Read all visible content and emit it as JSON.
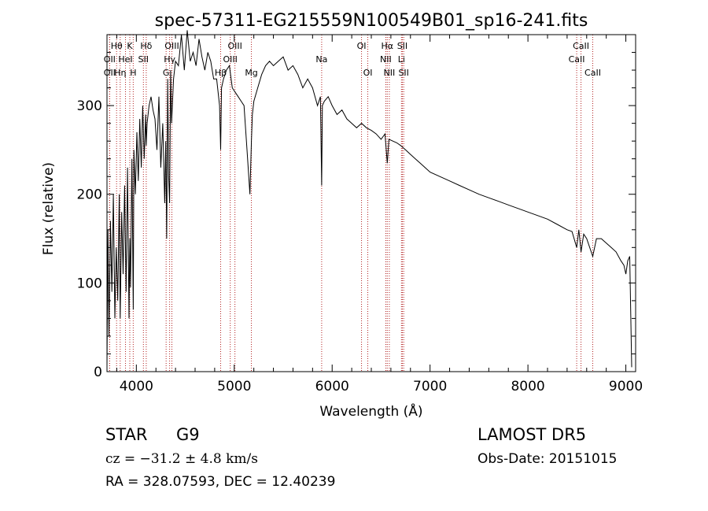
{
  "title": "spec-57311-EG215559N100549B01_sp16-241.fits",
  "info": {
    "object_class": "STAR",
    "subclass": "G9",
    "survey": "LAMOST DR5",
    "cz": "cz = −31.2 ± 4.8 km/s",
    "obs_date": "Obs-Date: 20151015",
    "coords": "RA = 328.07593, DEC =  12.40239"
  },
  "chart_data": {
    "type": "line",
    "title": "spec-57311-EG215559N100549B01_sp16-241.fits",
    "xlabel": "Wavelength (Å)",
    "ylabel": "Flux (relative)",
    "xlim": [
      3700,
      9100
    ],
    "ylim": [
      0,
      380
    ],
    "x_ticks": [
      4000,
      5000,
      6000,
      7000,
      8000,
      9000
    ],
    "y_ticks": [
      0,
      100,
      200,
      300
    ],
    "x_minor_step": 200,
    "y_minor_step": 20,
    "line_color": "#000000",
    "line_marker_color": "#b22222",
    "series": [
      {
        "x": [
          3700,
          3710,
          3720,
          3735,
          3750,
          3765,
          3780,
          3795,
          3810,
          3825,
          3835,
          3850,
          3865,
          3880,
          3895,
          3910,
          3925,
          3933,
          3940,
          3955,
          3968,
          3975,
          3990,
          4005,
          4020,
          4035,
          4050,
          4065,
          4080,
          4095,
          4101,
          4110,
          4130,
          4150,
          4170,
          4190,
          4210,
          4230,
          4250,
          4270,
          4290,
          4300,
          4310,
          4320,
          4330,
          4340,
          4350,
          4360,
          4380,
          4400,
          4430,
          4460,
          4490,
          4520,
          4550,
          4580,
          4610,
          4640,
          4670,
          4700,
          4730,
          4760,
          4790,
          4820,
          4850,
          4861,
          4870,
          4890,
          4920,
          4950,
          4980,
          5010,
          5040,
          5070,
          5100,
          5130,
          5160,
          5175,
          5185,
          5200,
          5240,
          5280,
          5320,
          5360,
          5400,
          5450,
          5500,
          5550,
          5600,
          5650,
          5700,
          5750,
          5800,
          5850,
          5880,
          5893,
          5900,
          5920,
          5960,
          6000,
          6050,
          6100,
          6150,
          6200,
          6250,
          6300,
          6350,
          6400,
          6450,
          6500,
          6540,
          6563,
          6580,
          6620,
          6660,
          6700,
          6750,
          6800,
          6850,
          6900,
          6950,
          7000,
          7100,
          7200,
          7300,
          7400,
          7500,
          7600,
          7700,
          7800,
          7900,
          8000,
          8100,
          8200,
          8300,
          8400,
          8450,
          8498,
          8520,
          8542,
          8570,
          8600,
          8662,
          8700,
          8750,
          8800,
          8850,
          8900,
          8950,
          8980,
          9000,
          9020,
          9040,
          9060
        ],
        "y": [
          5,
          160,
          40,
          170,
          90,
          200,
          60,
          140,
          80,
          200,
          60,
          180,
          110,
          210,
          90,
          230,
          60,
          150,
          95,
          240,
          70,
          250,
          200,
          270,
          215,
          285,
          230,
          300,
          240,
          290,
          255,
          280,
          300,
          310,
          295,
          285,
          250,
          310,
          230,
          280,
          190,
          260,
          150,
          330,
          220,
          190,
          340,
          280,
          330,
          350,
          345,
          380,
          340,
          385,
          350,
          360,
          345,
          375,
          355,
          340,
          360,
          350,
          330,
          330,
          300,
          250,
          320,
          330,
          340,
          345,
          320,
          315,
          310,
          305,
          300,
          250,
          200,
          260,
          290,
          305,
          320,
          335,
          345,
          350,
          345,
          350,
          355,
          340,
          345,
          335,
          320,
          330,
          320,
          300,
          310,
          210,
          300,
          305,
          310,
          300,
          290,
          295,
          285,
          280,
          275,
          280,
          275,
          272,
          268,
          262,
          268,
          235,
          262,
          260,
          258,
          255,
          250,
          245,
          240,
          235,
          230,
          225,
          220,
          215,
          210,
          205,
          200,
          196,
          192,
          188,
          184,
          180,
          176,
          172,
          166,
          160,
          158,
          140,
          160,
          135,
          155,
          150,
          130,
          150,
          150,
          145,
          140,
          135,
          125,
          120,
          110,
          125,
          130,
          5
        ]
      }
    ],
    "lines": [
      {
        "name": "Hθ",
        "wl": 3798,
        "row": 0
      },
      {
        "name": "OII",
        "wl": 3727,
        "row": 1
      },
      {
        "name": "OII",
        "wl": 3727,
        "row": 2
      },
      {
        "name": "K",
        "wl": 3933,
        "row": 0
      },
      {
        "name": "HeI",
        "wl": 3889,
        "row": 1
      },
      {
        "name": "Hη",
        "wl": 3835,
        "row": 2
      },
      {
        "name": "Hδ",
        "wl": 4101,
        "row": 0
      },
      {
        "name": "SII",
        "wl": 4072,
        "row": 1
      },
      {
        "name": "H",
        "wl": 3968,
        "row": 2
      },
      {
        "name": "OIII",
        "wl": 4363,
        "row": 0
      },
      {
        "name": "Hγ",
        "wl": 4340,
        "row": 1
      },
      {
        "name": "G",
        "wl": 4304,
        "row": 2
      },
      {
        "name": "OIII",
        "wl": 5007,
        "row": 0
      },
      {
        "name": "OIII",
        "wl": 4959,
        "row": 1
      },
      {
        "name": "Hβ",
        "wl": 4861,
        "row": 2
      },
      {
        "name": "Mg",
        "wl": 5175,
        "row": 2
      },
      {
        "name": "Na",
        "wl": 5893,
        "row": 1
      },
      {
        "name": "OI",
        "wl": 6300,
        "row": 0
      },
      {
        "name": "OI",
        "wl": 6364,
        "row": 2
      },
      {
        "name": "Hα",
        "wl": 6563,
        "row": 0
      },
      {
        "name": "NII",
        "wl": 6548,
        "row": 1
      },
      {
        "name": "NII",
        "wl": 6584,
        "row": 2
      },
      {
        "name": "SII",
        "wl": 6717,
        "row": 0
      },
      {
        "name": "Li",
        "wl": 6708,
        "row": 1
      },
      {
        "name": "SII",
        "wl": 6731,
        "row": 2
      },
      {
        "name": "CaII",
        "wl": 8542,
        "row": 0
      },
      {
        "name": "CaII",
        "wl": 8498,
        "row": 1
      },
      {
        "name": "CaII",
        "wl": 8662,
        "row": 2
      }
    ]
  }
}
